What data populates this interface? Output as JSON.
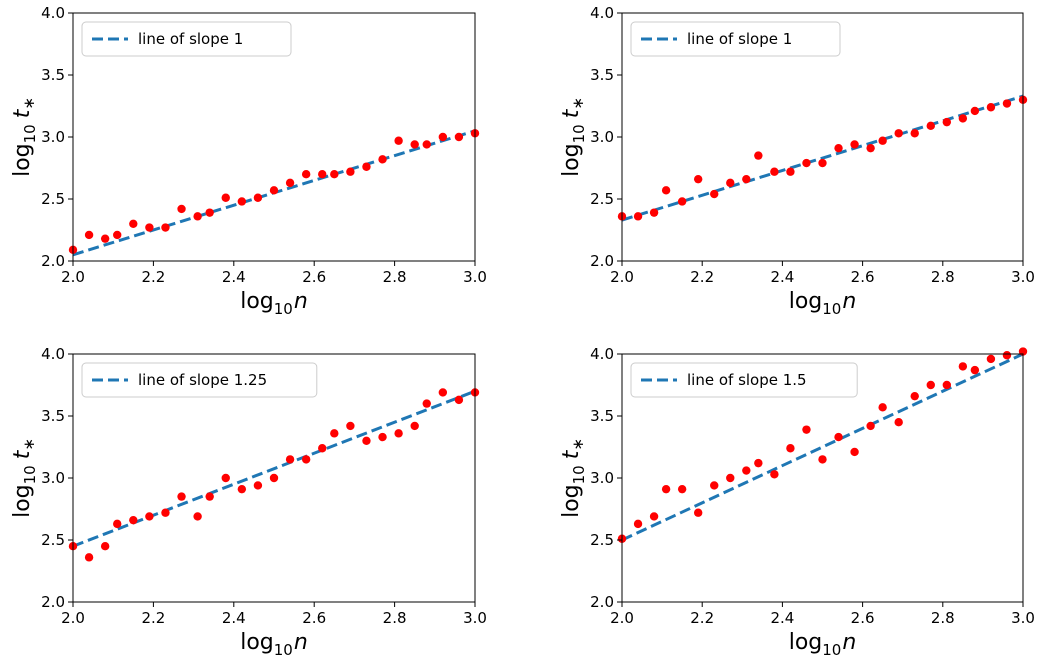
{
  "colors": {
    "line": "#1f77b4",
    "points": "#ff0000",
    "axes": "#000000"
  },
  "chart_data": [
    {
      "type": "scatter",
      "xlabel": "log10n",
      "ylabel": "log10 t*",
      "xlim": [
        2.0,
        3.0
      ],
      "ylim": [
        2.0,
        4.0
      ],
      "xticks": [
        "2.0",
        "2.2",
        "2.4",
        "2.6",
        "2.8",
        "3.0"
      ],
      "yticks": [
        "2.0",
        "2.5",
        "3.0",
        "3.5",
        "4.0"
      ],
      "legend": "line of slope 1",
      "legend_position": "upper-left",
      "fit_line": {
        "x": [
          2.0,
          3.0
        ],
        "y": [
          2.05,
          3.05
        ]
      },
      "x": [
        2.0,
        2.04,
        2.08,
        2.11,
        2.15,
        2.19,
        2.23,
        2.27,
        2.31,
        2.34,
        2.38,
        2.42,
        2.46,
        2.5,
        2.54,
        2.58,
        2.62,
        2.65,
        2.69,
        2.73,
        2.77,
        2.81,
        2.85,
        2.88,
        2.92,
        2.96,
        3.0
      ],
      "y": [
        2.09,
        2.21,
        2.18,
        2.21,
        2.3,
        2.27,
        2.27,
        2.42,
        2.36,
        2.39,
        2.51,
        2.48,
        2.51,
        2.57,
        2.63,
        2.7,
        2.7,
        2.7,
        2.72,
        2.76,
        2.82,
        2.97,
        2.94,
        2.94,
        3.0,
        3.0,
        3.03
      ]
    },
    {
      "type": "scatter",
      "xlabel": "log10n",
      "ylabel": "log10 t*",
      "xlim": [
        2.0,
        3.0
      ],
      "ylim": [
        2.0,
        4.0
      ],
      "xticks": [
        "2.0",
        "2.2",
        "2.4",
        "2.6",
        "2.8",
        "3.0"
      ],
      "yticks": [
        "2.0",
        "2.5",
        "3.0",
        "3.5",
        "4.0"
      ],
      "legend": "line of slope 1",
      "legend_position": "upper-left",
      "fit_line": {
        "x": [
          2.0,
          3.0
        ],
        "y": [
          2.33,
          3.33
        ]
      },
      "x": [
        2.0,
        2.04,
        2.08,
        2.11,
        2.15,
        2.19,
        2.23,
        2.27,
        2.31,
        2.34,
        2.38,
        2.42,
        2.46,
        2.5,
        2.54,
        2.58,
        2.62,
        2.65,
        2.69,
        2.73,
        2.77,
        2.81,
        2.85,
        2.88,
        2.92,
        2.96,
        3.0
      ],
      "y": [
        2.36,
        2.36,
        2.39,
        2.57,
        2.48,
        2.66,
        2.54,
        2.63,
        2.66,
        2.85,
        2.72,
        2.72,
        2.79,
        2.79,
        2.91,
        2.94,
        2.91,
        2.97,
        3.03,
        3.03,
        3.09,
        3.12,
        3.15,
        3.21,
        3.24,
        3.27,
        3.3
      ]
    },
    {
      "type": "scatter",
      "xlabel": "log10n",
      "ylabel": "log10 t*",
      "xlim": [
        2.0,
        3.0
      ],
      "ylim": [
        2.0,
        4.0
      ],
      "xticks": [
        "2.0",
        "2.2",
        "2.4",
        "2.6",
        "2.8",
        "3.0"
      ],
      "yticks": [
        "2.0",
        "2.5",
        "3.0",
        "3.5",
        "4.0"
      ],
      "legend": "line of slope 1.25",
      "legend_position": "upper-left",
      "fit_line": {
        "x": [
          2.0,
          3.0
        ],
        "y": [
          2.45,
          3.7
        ]
      },
      "x": [
        2.0,
        2.04,
        2.08,
        2.11,
        2.15,
        2.19,
        2.23,
        2.27,
        2.31,
        2.34,
        2.38,
        2.42,
        2.46,
        2.5,
        2.54,
        2.58,
        2.62,
        2.65,
        2.69,
        2.73,
        2.77,
        2.81,
        2.85,
        2.88,
        2.92,
        2.96,
        3.0
      ],
      "y": [
        2.45,
        2.36,
        2.45,
        2.63,
        2.66,
        2.69,
        2.72,
        2.85,
        2.69,
        2.85,
        3.0,
        2.91,
        2.94,
        3.0,
        3.15,
        3.15,
        3.24,
        3.36,
        3.42,
        3.3,
        3.33,
        3.36,
        3.42,
        3.6,
        3.69,
        3.63,
        3.69
      ]
    },
    {
      "type": "scatter",
      "xlabel": "log10n",
      "ylabel": "log10 t*",
      "xlim": [
        2.0,
        3.0
      ],
      "ylim": [
        2.0,
        4.0
      ],
      "xticks": [
        "2.0",
        "2.2",
        "2.4",
        "2.6",
        "2.8",
        "3.0"
      ],
      "yticks": [
        "2.0",
        "2.5",
        "3.0",
        "3.5",
        "4.0"
      ],
      "legend": "line of slope 1.5",
      "legend_position": "upper-left",
      "fit_line": {
        "x": [
          2.0,
          3.0
        ],
        "y": [
          2.5,
          4.0
        ]
      },
      "x": [
        2.0,
        2.04,
        2.08,
        2.11,
        2.15,
        2.19,
        2.23,
        2.27,
        2.31,
        2.34,
        2.38,
        2.42,
        2.46,
        2.5,
        2.54,
        2.58,
        2.62,
        2.65,
        2.69,
        2.73,
        2.77,
        2.81,
        2.85,
        2.88,
        2.92,
        2.96,
        3.0
      ],
      "y": [
        2.51,
        2.63,
        2.69,
        2.91,
        2.91,
        2.72,
        2.94,
        3.0,
        3.06,
        3.12,
        3.03,
        3.24,
        3.39,
        3.15,
        3.33,
        3.21,
        3.42,
        3.57,
        3.45,
        3.66,
        3.75,
        3.75,
        3.9,
        3.87,
        3.96,
        3.99,
        4.02
      ]
    }
  ]
}
